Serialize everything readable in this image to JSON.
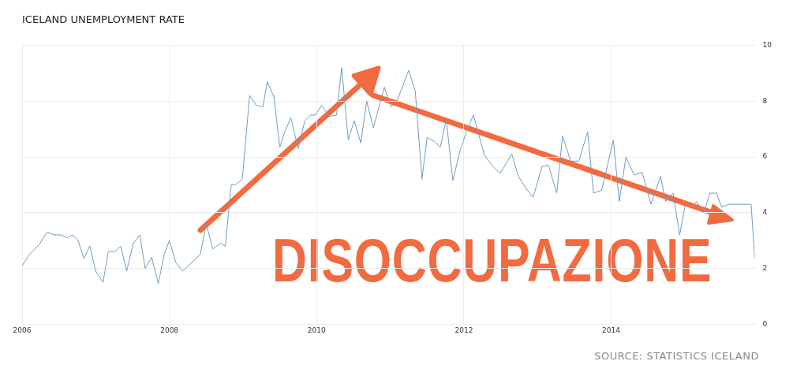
{
  "chart_data": {
    "type": "line",
    "title": "ICELAND UNEMPLOYMENT RATE",
    "annotations": [
      "DISOCCUPAZIONE",
      "SOURCE: STATISTICS ICELAND"
    ],
    "x": [
      2006.0,
      2006.1,
      2006.23,
      2006.34,
      2006.44,
      2006.53,
      2006.61,
      2006.69,
      2006.76,
      2006.84,
      2006.92,
      2007.0,
      2007.1,
      2007.17,
      2007.26,
      2007.34,
      2007.42,
      2007.51,
      2007.6,
      2007.67,
      2007.76,
      2007.85,
      2007.93,
      2008.0,
      2008.09,
      2008.18,
      2008.26,
      2008.42,
      2008.5,
      2008.59,
      2008.69,
      2008.76,
      2008.84,
      2008.9,
      2008.99,
      2009.09,
      2009.18,
      2009.27,
      2009.33,
      2009.42,
      2009.5,
      2009.56,
      2009.65,
      2009.75,
      2009.84,
      2009.92,
      2009.98,
      2010.07,
      2010.17,
      2010.27,
      2010.34,
      2010.43,
      2010.51,
      2010.6,
      2010.68,
      2010.77,
      2010.92,
      2011.01,
      2011.09,
      2011.25,
      2011.34,
      2011.43,
      2011.5,
      2011.6,
      2011.68,
      2011.76,
      2011.85,
      2011.94,
      2012.04,
      2012.13,
      2012.28,
      2012.4,
      2012.49,
      2012.65,
      2012.74,
      2012.85,
      2012.94,
      2013.06,
      2013.15,
      2013.26,
      2013.34,
      2013.45,
      2013.56,
      2013.68,
      2013.76,
      2013.87,
      2014.03,
      2014.11,
      2014.2,
      2014.31,
      2014.42,
      2014.54,
      2014.67,
      2014.74,
      2014.84,
      2014.93,
      2015.01,
      2015.08,
      2015.16,
      2015.26,
      2015.34,
      2015.43,
      2015.5,
      2015.6,
      2015.9,
      2015.95
    ],
    "series": [
      {
        "color": "#6f9cc4",
        "values": [
          2.1,
          2.5,
          2.85,
          3.3,
          3.2,
          3.2,
          3.1,
          3.2,
          3.0,
          2.35,
          2.8,
          1.9,
          1.5,
          2.6,
          2.6,
          2.8,
          1.9,
          2.9,
          3.2,
          2.0,
          2.4,
          1.45,
          2.5,
          3.0,
          2.2,
          1.9,
          2.1,
          2.5,
          3.6,
          2.7,
          2.9,
          2.8,
          5.0,
          5.0,
          5.2,
          8.2,
          7.85,
          7.8,
          8.7,
          8.15,
          6.35,
          6.85,
          7.4,
          6.3,
          7.3,
          7.5,
          7.5,
          7.85,
          7.45,
          7.5,
          9.2,
          6.6,
          7.3,
          6.5,
          8.0,
          7.05,
          8.5,
          7.8,
          8.0,
          9.1,
          8.35,
          5.2,
          6.7,
          6.55,
          6.35,
          7.35,
          5.15,
          6.15,
          6.95,
          7.5,
          6.05,
          5.65,
          5.4,
          6.1,
          5.3,
          4.85,
          4.55,
          5.65,
          5.7,
          4.7,
          6.75,
          5.85,
          5.85,
          6.9,
          4.7,
          4.8,
          6.6,
          4.4,
          6.0,
          5.35,
          5.45,
          4.3,
          5.3,
          4.4,
          4.7,
          3.2,
          4.35,
          4.2,
          4.4,
          4.0,
          4.7,
          4.7,
          4.2,
          4.3,
          4.3,
          2.35
        ]
      }
    ],
    "xlim": [
      2006,
      2015.95
    ],
    "xticks": [
      2006,
      2008,
      2010,
      2012,
      2014
    ],
    "ylim": [
      0,
      10
    ],
    "yticks": [
      0,
      2,
      4,
      6,
      8,
      10
    ],
    "grid": true,
    "legend": false
  }
}
